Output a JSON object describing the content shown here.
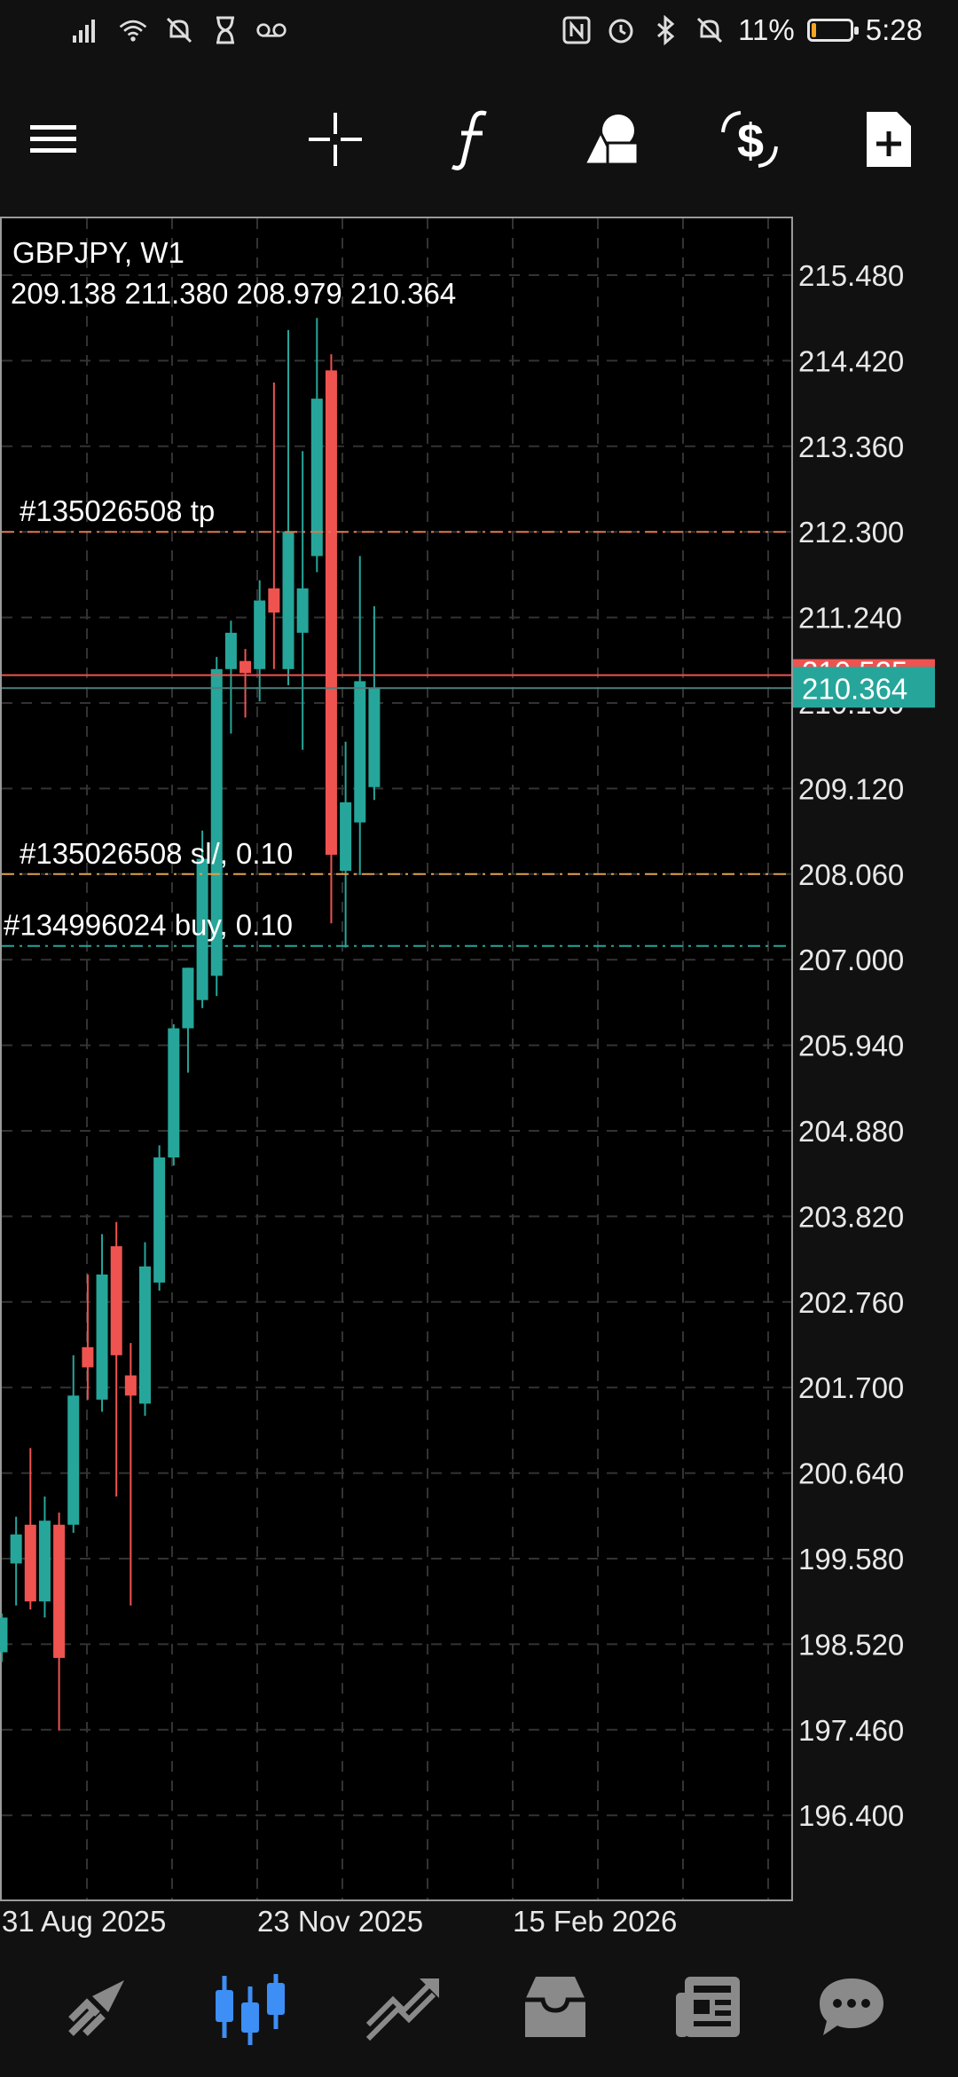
{
  "status_bar": {
    "battery_percent": "11%",
    "battery_level": 0.11,
    "time": "5:28",
    "left_icons": [
      "signal-icon",
      "wifi-icon",
      "notifications-off-icon",
      "hourglass-icon",
      "voicemail-icon"
    ],
    "right_icons": [
      "nfc-icon",
      "alarm-icon",
      "bluetooth-icon",
      "mute-icon"
    ]
  },
  "toolbar": {
    "icons": [
      "menu-icon",
      "crosshair-icon",
      "indicator-f-icon",
      "objects-icon",
      "trade-icon",
      "new-order-icon"
    ]
  },
  "chart": {
    "symbol": "GBPJPY, W1",
    "ohlc": "209.138 211.380 208.979 210.364",
    "accent_colors": {
      "bull": "#26a69a",
      "bear": "#ef5350",
      "bid_line": "#ef5350",
      "ask_tag": "#26a69a"
    },
    "price_axis_labels": [
      "215.480",
      "214.420",
      "213.360",
      "212.300",
      "211.240",
      "210.180",
      "209.120",
      "208.060",
      "207.000",
      "205.940",
      "204.880",
      "203.820",
      "202.760",
      "201.700",
      "200.640",
      "199.580",
      "198.520",
      "197.460",
      "196.400"
    ],
    "date_labels": [
      "31 Aug 2025",
      "23 Nov 2025",
      "15 Feb 2026"
    ],
    "bid_price_tag": "210.525",
    "current_price_tag": "210.364",
    "trade_lines": [
      {
        "label": "#135026508 tp",
        "price": 212.3,
        "color": "#e0784a"
      },
      {
        "label": "#135026508 sl/, 0.10",
        "price": 208.06,
        "color": "#e0a04a"
      },
      {
        "label": "#134996024 buy, 0.10",
        "price": 207.17,
        "color": "#26a69a"
      }
    ],
    "price_range": [
      195.0,
      216.2
    ],
    "chart_data": {
      "type": "candlestick",
      "timeframe": "W1",
      "candles": [
        {
          "o": 198.42,
          "h": 198.9,
          "l": 198.3,
          "c": 198.85,
          "dir": "bull"
        },
        {
          "o": 199.52,
          "h": 200.1,
          "l": 199.0,
          "c": 199.88,
          "dir": "bull"
        },
        {
          "o": 200.0,
          "h": 200.95,
          "l": 198.95,
          "c": 199.05,
          "dir": "bear"
        },
        {
          "o": 199.05,
          "h": 200.35,
          "l": 198.85,
          "c": 200.05,
          "dir": "bull"
        },
        {
          "o": 200.0,
          "h": 200.15,
          "l": 197.45,
          "c": 198.35,
          "dir": "bear"
        },
        {
          "o": 200.0,
          "h": 202.1,
          "l": 199.9,
          "c": 201.6,
          "dir": "bull"
        },
        {
          "o": 202.2,
          "h": 203.1,
          "l": 201.55,
          "c": 201.95,
          "dir": "bear"
        },
        {
          "o": 201.55,
          "h": 203.6,
          "l": 201.4,
          "c": 203.1,
          "dir": "bull"
        },
        {
          "o": 203.45,
          "h": 203.75,
          "l": 200.35,
          "c": 202.1,
          "dir": "bear"
        },
        {
          "o": 201.85,
          "h": 202.25,
          "l": 199.0,
          "c": 201.6,
          "dir": "bear"
        },
        {
          "o": 201.5,
          "h": 203.5,
          "l": 201.35,
          "c": 203.2,
          "dir": "bull"
        },
        {
          "o": 203.0,
          "h": 204.7,
          "l": 202.9,
          "c": 204.55,
          "dir": "bull"
        },
        {
          "o": 204.55,
          "h": 206.2,
          "l": 204.45,
          "c": 206.15,
          "dir": "bull"
        },
        {
          "o": 206.15,
          "h": 206.9,
          "l": 205.6,
          "c": 206.9,
          "dir": "bull"
        },
        {
          "o": 206.5,
          "h": 208.6,
          "l": 206.4,
          "c": 208.25,
          "dir": "bull"
        },
        {
          "o": 206.8,
          "h": 210.75,
          "l": 206.55,
          "c": 210.6,
          "dir": "bull"
        },
        {
          "o": 210.6,
          "h": 211.2,
          "l": 209.8,
          "c": 211.05,
          "dir": "bull"
        },
        {
          "o": 210.7,
          "h": 210.85,
          "l": 210.0,
          "c": 210.55,
          "dir": "bear"
        },
        {
          "o": 210.6,
          "h": 211.7,
          "l": 210.2,
          "c": 211.45,
          "dir": "bull"
        },
        {
          "o": 211.6,
          "h": 214.15,
          "l": 210.6,
          "c": 211.3,
          "dir": "bear"
        },
        {
          "o": 210.6,
          "h": 214.8,
          "l": 210.4,
          "c": 212.3,
          "dir": "bull"
        },
        {
          "o": 211.05,
          "h": 213.3,
          "l": 209.6,
          "c": 211.6,
          "dir": "bull"
        },
        {
          "o": 212.0,
          "h": 214.95,
          "l": 211.8,
          "c": 213.95,
          "dir": "bull"
        },
        {
          "o": 214.3,
          "h": 214.5,
          "l": 207.45,
          "c": 208.3,
          "dir": "bear"
        },
        {
          "o": 208.1,
          "h": 209.7,
          "l": 207.15,
          "c": 208.95,
          "dir": "bull"
        },
        {
          "o": 208.7,
          "h": 212.0,
          "l": 208.05,
          "c": 210.45,
          "dir": "bull"
        },
        {
          "o": 209.138,
          "h": 211.38,
          "l": 208.979,
          "c": 210.364,
          "dir": "bull"
        }
      ]
    }
  },
  "bottom_nav": {
    "active_index": 1,
    "items": [
      "quotes-icon",
      "chart-icon",
      "trade-icon",
      "history-icon",
      "news-icon",
      "messages-icon"
    ]
  }
}
